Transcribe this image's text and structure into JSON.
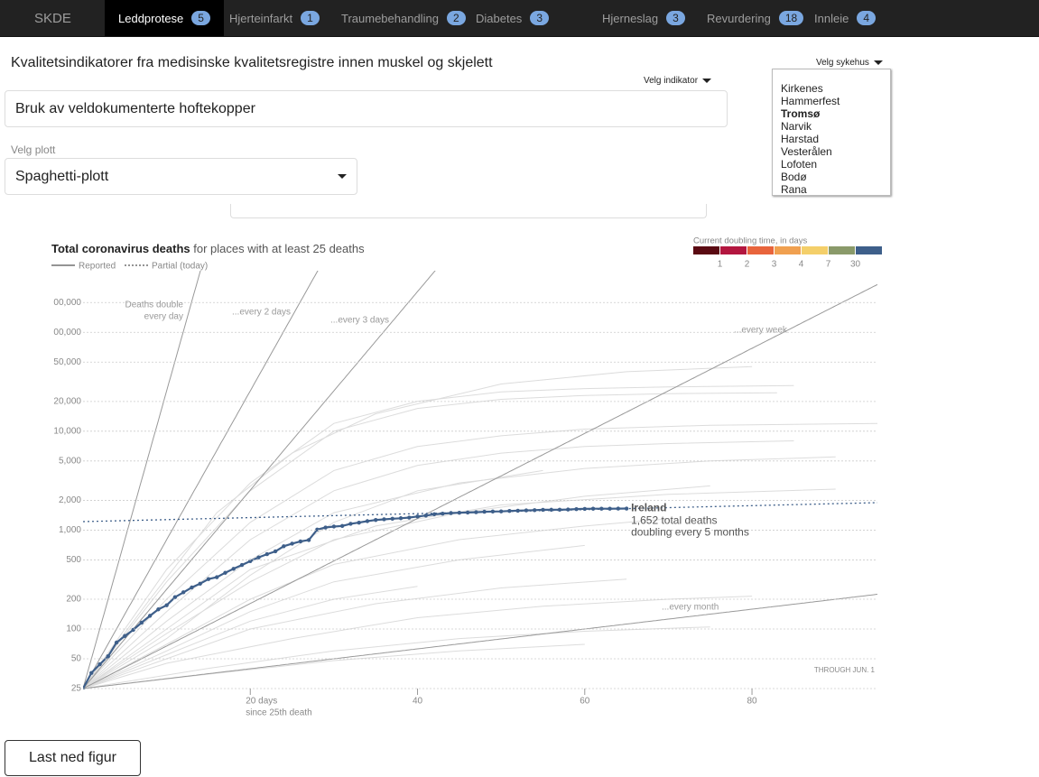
{
  "navbar": {
    "brand": "SKDE",
    "tabs": [
      {
        "label": "Leddprotese",
        "count": 5,
        "active": true
      },
      {
        "label": "Hjerteinfarkt",
        "count": 1
      },
      {
        "label": "Traumebehandling",
        "count": 2
      },
      {
        "label": "Diabetes",
        "count": 3
      },
      {
        "label": "Hjerneslag",
        "count": 3
      },
      {
        "label": "Revurdering",
        "count": 18
      },
      {
        "label": "Innleie",
        "count": 4
      }
    ]
  },
  "header": {
    "title": "Kvalitetsindikatorer fra medisinske kvalitetsregistre innen muskel og skjelett"
  },
  "indicator_select": {
    "label": "Velg indikator",
    "value": "Bruk av veldokumenterte hoftekopper"
  },
  "hospital_select": {
    "label": "Velg sykehus",
    "options": [
      {
        "label": "Kirkenes"
      },
      {
        "label": "Hammerfest"
      },
      {
        "label": "Tromsø",
        "selected": true
      },
      {
        "label": "Narvik"
      },
      {
        "label": "Harstad"
      },
      {
        "label": "Vesterålen"
      },
      {
        "label": "Lofoten"
      },
      {
        "label": "Bodø"
      },
      {
        "label": "Rana"
      }
    ]
  },
  "plot_select": {
    "label": "Velg plott",
    "value": "Spaghetti-plott"
  },
  "chart_data": {
    "type": "line",
    "title": "Total coronavirus deaths",
    "subtitle": "for places with at least 25 deaths",
    "log_scale_y": true,
    "grid": true,
    "xlim": [
      0,
      95
    ],
    "ylim": [
      25,
      340000
    ],
    "xticks": [
      {
        "value": 20,
        "label": "20 days"
      },
      40,
      60,
      80
    ],
    "x_axis_label": "since 25th death",
    "yticks": [
      25,
      50,
      100,
      200,
      500,
      {
        "value": 1000,
        "label": "1,000"
      },
      {
        "value": 2000,
        "label": "2,000"
      },
      {
        "value": 5000,
        "label": "5,000"
      },
      {
        "value": 10000,
        "label": "10,000"
      },
      {
        "value": 20000,
        "label": "20,000"
      },
      {
        "value": 50000,
        "label": "50,000"
      },
      {
        "value": 100000,
        "label": "00,000"
      },
      {
        "value": 200000,
        "label": "00,000"
      }
    ],
    "legend": [
      {
        "label": "Reported",
        "style": "solid"
      },
      {
        "label": "Partial (today)",
        "style": "dotted"
      }
    ],
    "doubling_legend": {
      "title": "Current doubling time, in days",
      "colors": [
        "#5a0a12",
        "#b3163f",
        "#e8643c",
        "#f0a050",
        "#f4cf6a",
        "#8a9a6a",
        "#3e5f8a"
      ],
      "ticks": [
        1,
        2,
        3,
        4,
        7,
        30
      ]
    },
    "reference_lines": [
      {
        "doubling_days": 1,
        "label": [
          "Deaths double",
          "every day"
        ]
      },
      {
        "doubling_days": 2,
        "label": [
          "...every 2 days"
        ]
      },
      {
        "doubling_days": 3,
        "label": [
          "...every 3 days"
        ]
      },
      {
        "doubling_days": 7,
        "label": [
          "...every week"
        ]
      },
      {
        "doubling_days": 30,
        "label": [
          "...every month"
        ]
      }
    ],
    "series": [
      {
        "name": "Ireland",
        "color": "#3e5f8a",
        "x": [
          0,
          1,
          2,
          3,
          4,
          5,
          6,
          7,
          8,
          9,
          10,
          11,
          12,
          13,
          14,
          15,
          16,
          17,
          18,
          19,
          20,
          21,
          22,
          23,
          24,
          25,
          26,
          27,
          28,
          29,
          30,
          31,
          32,
          33,
          34,
          35,
          36,
          37,
          38,
          39,
          40,
          41,
          42,
          43,
          44,
          45,
          46,
          47,
          48,
          49,
          50,
          51,
          52,
          53,
          54,
          55,
          56,
          57,
          58,
          59,
          60,
          61,
          62,
          63,
          64,
          65
        ],
        "values": [
          25,
          36,
          44,
          53,
          73,
          85,
          98,
          116,
          136,
          158,
          174,
          210,
          235,
          263,
          287,
          320,
          334,
          370,
          406,
          444,
          486,
          530,
          571,
          610,
          687,
          730,
          769,
          794,
          1014,
          1063,
          1087,
          1102,
          1159,
          1190,
          1232,
          1265,
          1286,
          1303,
          1319,
          1339,
          1375,
          1403,
          1446,
          1467,
          1488,
          1497,
          1506,
          1518,
          1533,
          1543,
          1547,
          1561,
          1571,
          1583,
          1592,
          1604,
          1606,
          1608,
          1615,
          1631,
          1639,
          1645,
          1647,
          1648,
          1650,
          1652
        ],
        "annotation": [
          "1,652 total deaths",
          "doubling every 5 months"
        ]
      }
    ],
    "trend": {
      "color": "#3e5f8a",
      "x": [
        0,
        95
      ],
      "values": [
        1218,
        1895
      ]
    },
    "background_color": "#dcdcdc",
    "background_series": [
      {
        "x": [
          0,
          10,
          20,
          30,
          40,
          50,
          60,
          70,
          85
        ],
        "values": [
          25,
          400,
          3000,
          12000,
          20000,
          25000,
          27000,
          28000,
          29000
        ]
      },
      {
        "x": [
          0,
          10,
          20,
          30,
          40,
          50,
          60,
          70,
          83
        ],
        "values": [
          25,
          300,
          2500,
          10000,
          17000,
          21000,
          23000,
          24000,
          24500
        ]
      },
      {
        "x": [
          0,
          10,
          20,
          30,
          40,
          50,
          60,
          75,
          95
        ],
        "values": [
          25,
          200,
          1200,
          4000,
          7000,
          9000,
          10500,
          11500,
          12000
        ]
      },
      {
        "x": [
          0,
          10,
          20,
          30,
          40,
          50,
          60,
          70,
          85
        ],
        "values": [
          25,
          150,
          800,
          2500,
          4500,
          6000,
          7000,
          7500,
          8000
        ]
      },
      {
        "x": [
          0,
          10,
          20,
          30,
          45,
          60,
          75,
          90
        ],
        "values": [
          25,
          120,
          500,
          1500,
          3000,
          4200,
          5000,
          5500
        ]
      },
      {
        "x": [
          0,
          10,
          20,
          30,
          45,
          60,
          75
        ],
        "values": [
          25,
          90,
          300,
          800,
          1500,
          2200,
          2800
        ]
      },
      {
        "x": [
          0,
          10,
          20,
          30,
          45,
          60,
          70
        ],
        "values": [
          25,
          70,
          200,
          450,
          800,
          1100,
          1300
        ]
      },
      {
        "x": [
          0,
          10,
          20,
          30,
          45,
          60
        ],
        "values": [
          25,
          60,
          150,
          300,
          500,
          700
        ]
      },
      {
        "x": [
          0,
          10,
          20,
          35,
          50,
          65
        ],
        "values": [
          25,
          50,
          100,
          180,
          260,
          320
        ]
      },
      {
        "x": [
          0,
          10,
          25,
          40,
          55,
          70,
          80
        ],
        "values": [
          25,
          45,
          80,
          130,
          170,
          200,
          215
        ]
      },
      {
        "x": [
          0,
          15,
          30,
          45,
          60,
          75
        ],
        "values": [
          25,
          40,
          60,
          80,
          95,
          105
        ]
      },
      {
        "x": [
          0,
          10,
          20,
          30,
          40,
          55
        ],
        "values": [
          25,
          80,
          350,
          1200,
          2500,
          4000
        ]
      },
      {
        "x": [
          0,
          8,
          16,
          25,
          35,
          50,
          65,
          80
        ],
        "values": [
          25,
          200,
          1500,
          6000,
          15000,
          30000,
          40000,
          45000
        ]
      },
      {
        "x": [
          0,
          15,
          30,
          45,
          60
        ],
        "values": [
          25,
          35,
          48,
          60,
          70
        ]
      },
      {
        "x": [
          0,
          10,
          20,
          35,
          50,
          70,
          90
        ],
        "values": [
          25,
          100,
          400,
          1100,
          1800,
          2300,
          2600
        ]
      },
      {
        "x": [
          0,
          10,
          20,
          30,
          40
        ],
        "values": [
          25,
          55,
          120,
          200,
          270
        ]
      }
    ],
    "note": "THROUGH JUN. 1"
  },
  "download_button": "Last ned figur"
}
